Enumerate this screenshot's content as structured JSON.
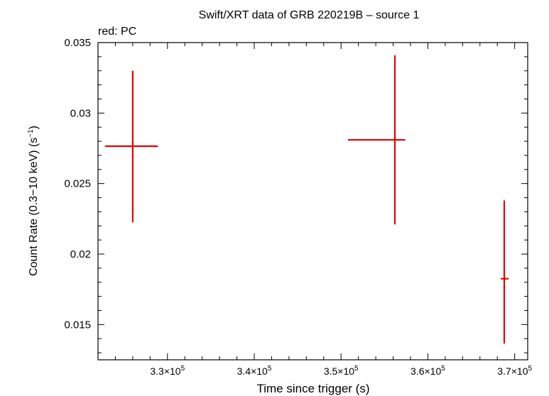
{
  "chart_data": {
    "type": "scatter",
    "title": "Swift/XRT data of GRB 220219B – source 1",
    "subtitle": "red: PC",
    "xlabel": "Time since trigger (s)",
    "ylabel": "Count Rate (0.3−10 keV) (s",
    "ylabel_sup": "−1",
    "ylabel_end": ")",
    "xlim": [
      322000,
      371500
    ],
    "ylim": [
      0.0125,
      0.035
    ],
    "x_ticks": [
      {
        "mantissa": "3.3×10",
        "exp": "5",
        "value": 330000
      },
      {
        "mantissa": "3.4×10",
        "exp": "5",
        "value": 340000
      },
      {
        "mantissa": "3.5×10",
        "exp": "5",
        "value": 350000
      },
      {
        "mantissa": "3.6×10",
        "exp": "5",
        "value": 360000
      },
      {
        "mantissa": "3.7×10",
        "exp": "5",
        "value": 370000
      }
    ],
    "y_ticks": [
      {
        "label": "0.035",
        "value": 0.035
      },
      {
        "label": "0.03",
        "value": 0.03
      },
      {
        "label": "0.025",
        "value": 0.025
      },
      {
        "label": "0.02",
        "value": 0.02
      },
      {
        "label": "0.015",
        "value": 0.015
      }
    ],
    "series": [
      {
        "name": "PC",
        "color": "#e60000",
        "points": [
          {
            "x": 326000,
            "x_lo": 322800,
            "x_hi": 328900,
            "y": 0.02765,
            "y_lo": 0.02225,
            "y_hi": 0.033
          },
          {
            "x": 356200,
            "x_lo": 350800,
            "x_hi": 357400,
            "y": 0.0281,
            "y_lo": 0.0221,
            "y_hi": 0.0341
          },
          {
            "x": 368800,
            "x_lo": 368400,
            "x_hi": 369300,
            "y": 0.01825,
            "y_lo": 0.01365,
            "y_hi": 0.0238
          }
        ]
      }
    ],
    "grid": false,
    "legend": "none"
  }
}
